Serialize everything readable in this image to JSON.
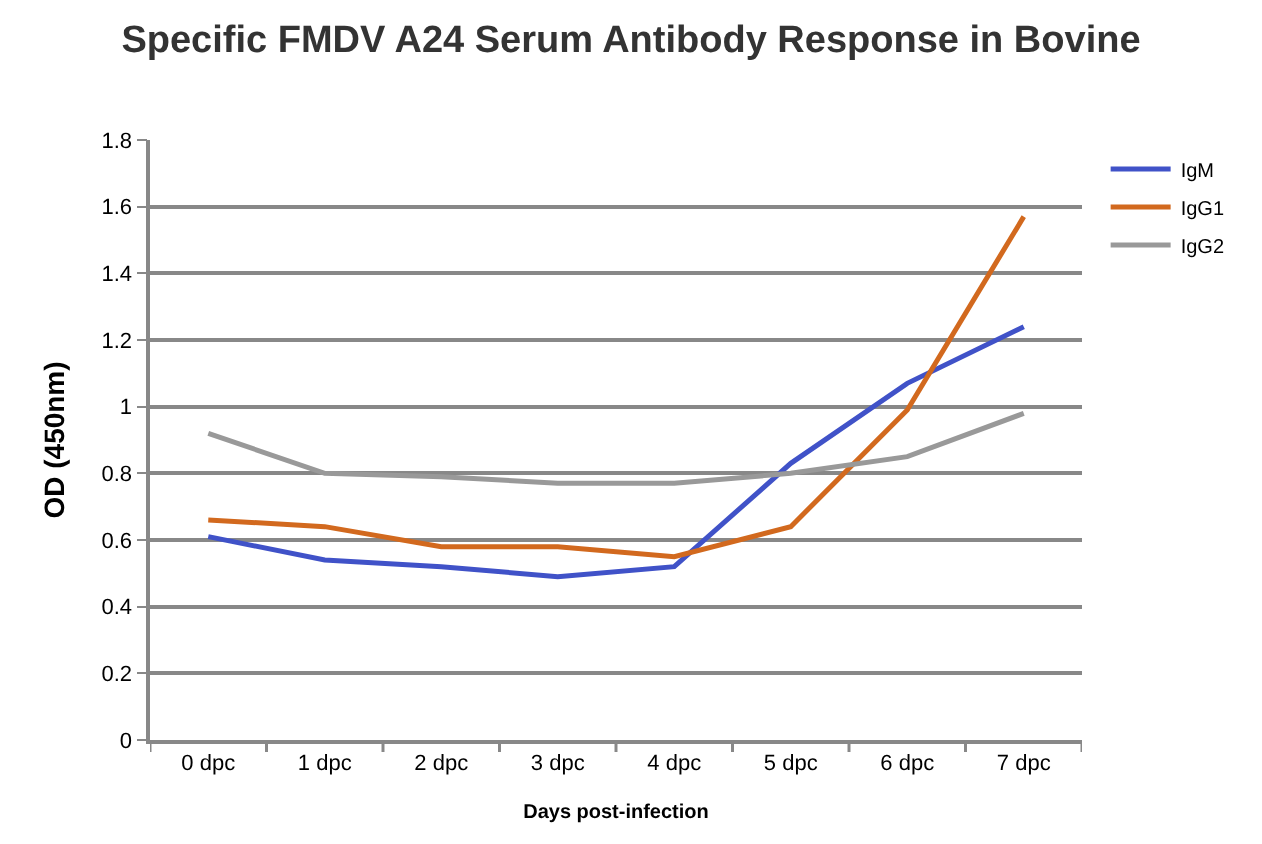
{
  "chart_data": {
    "type": "line",
    "title": "Specific FMDV A24 Serum Antibody Response in Bovine",
    "xlabel": "Days post-infection",
    "ylabel": "OD (450nm)",
    "categories": [
      "0 dpc",
      "1 dpc",
      "2 dpc",
      "3 dpc",
      "4 dpc",
      "5 dpc",
      "6 dpc",
      "7 dpc"
    ],
    "series": [
      {
        "name": "IgM",
        "color": "#4052c8",
        "values": [
          0.61,
          0.54,
          0.52,
          0.49,
          0.52,
          0.83,
          1.07,
          1.24
        ]
      },
      {
        "name": "IgG1",
        "color": "#d2691e",
        "values": [
          0.66,
          0.64,
          0.58,
          0.58,
          0.55,
          0.64,
          0.99,
          1.57
        ]
      },
      {
        "name": "IgG2",
        "color": "#999999",
        "values": [
          0.92,
          0.8,
          0.79,
          0.77,
          0.77,
          0.8,
          0.85,
          0.98
        ]
      }
    ],
    "ylim": [
      0,
      1.8
    ],
    "yticks": [
      0,
      0.2,
      0.4,
      0.6,
      0.8,
      1,
      1.2,
      1.4,
      1.6,
      1.8
    ],
    "grid": "y",
    "legend": "top right",
    "marker": "none",
    "line_style": "solid"
  }
}
